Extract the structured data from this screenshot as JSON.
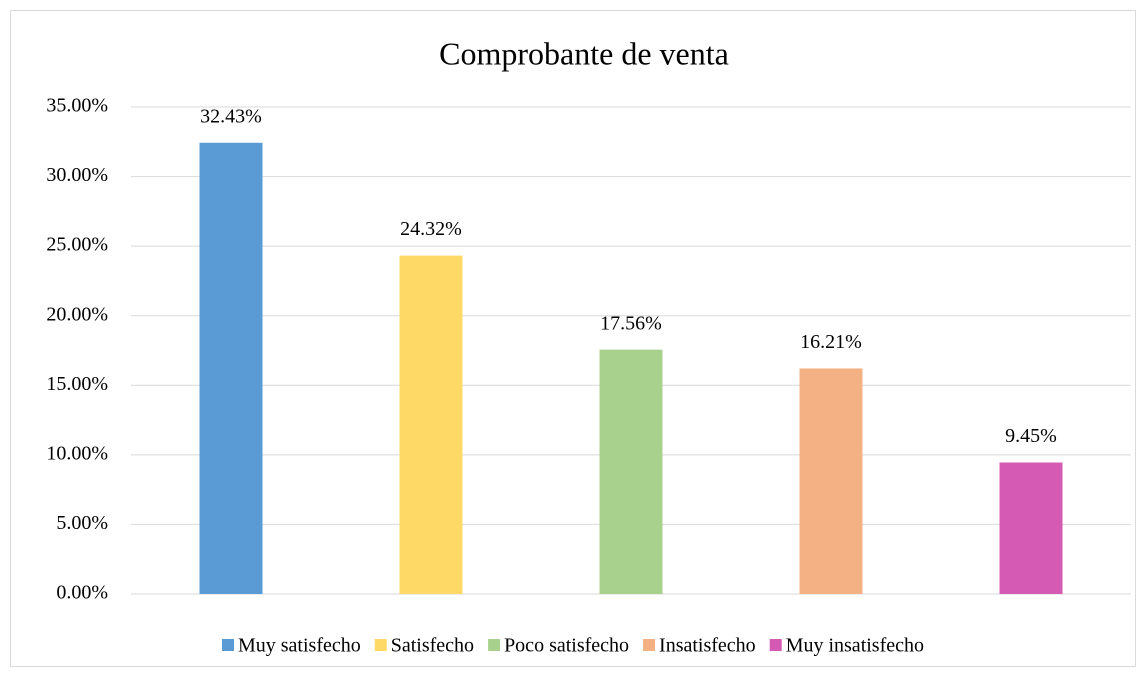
{
  "chart_data": {
    "type": "bar",
    "title": "Comprobante de venta",
    "categories": [
      "Muy satisfecho",
      "Satisfecho",
      "Poco satisfecho",
      "Insatisfecho",
      "Muy insatisfecho"
    ],
    "values": [
      32.43,
      24.32,
      17.56,
      16.21,
      9.45
    ],
    "value_labels": [
      "32.43%",
      "24.32%",
      "17.56%",
      "16.21%",
      "9.45%"
    ],
    "colors": [
      "#5b9bd5",
      "#ffd966",
      "#a9d18e",
      "#f4b183",
      "#d55ab4"
    ],
    "ylim": [
      0,
      35
    ],
    "yticks": [
      {
        "value": 0,
        "label": "0.00%"
      },
      {
        "value": 5,
        "label": "5.00%"
      },
      {
        "value": 10,
        "label": "10.00%"
      },
      {
        "value": 15,
        "label": "15.00%"
      },
      {
        "value": 20,
        "label": "20.00%"
      },
      {
        "value": 25,
        "label": "25.00%"
      },
      {
        "value": 30,
        "label": "30.00%"
      },
      {
        "value": 35,
        "label": "35.00%"
      }
    ],
    "grid": true,
    "legend": "bottom"
  }
}
